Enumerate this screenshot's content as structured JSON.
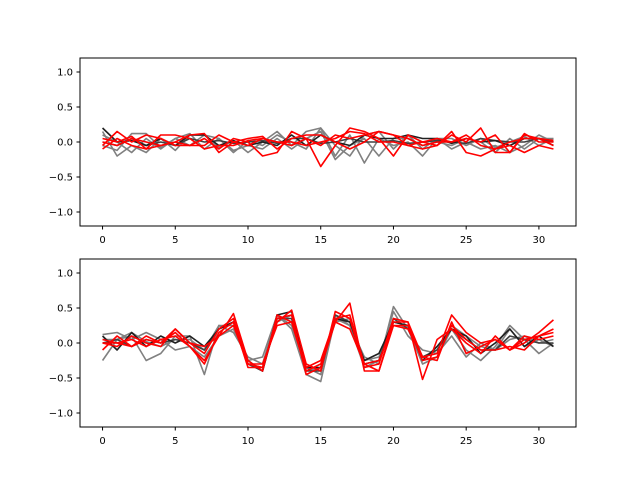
{
  "chart_data": [
    {
      "type": "line",
      "title": "",
      "xlabel": "",
      "ylabel": "",
      "xlim": [
        -1.55,
        32.55
      ],
      "ylim": [
        -1.2,
        1.2
      ],
      "xticks": [
        0,
        5,
        10,
        15,
        20,
        25,
        30
      ],
      "yticks": [
        -1.0,
        -0.5,
        0.0,
        0.5,
        1.0
      ],
      "xtick_labels": [
        "0",
        "5",
        "10",
        "15",
        "20",
        "25",
        "30"
      ],
      "ytick_labels": [
        "−1.0",
        "−0.5",
        "0.0",
        "0.5",
        "1.0"
      ],
      "grid": false,
      "x": [
        0,
        1,
        2,
        3,
        4,
        5,
        6,
        7,
        8,
        9,
        10,
        11,
        12,
        13,
        14,
        15,
        16,
        17,
        18,
        19,
        20,
        21,
        22,
        23,
        24,
        25,
        26,
        27,
        28,
        29,
        30,
        31
      ],
      "series": [
        {
          "color": "#808080",
          "values": [
            0.15,
            -0.2,
            -0.05,
            -0.15,
            0.05,
            -0.12,
            0.1,
            0.1,
            -0.08,
            0.02,
            -0.15,
            0.0,
            0.15,
            -0.05,
            0.15,
            0.2,
            -0.2,
            0.1,
            -0.3,
            0.05,
            -0.05,
            0.0,
            -0.2,
            0.05,
            -0.1,
            0.0,
            -0.1,
            -0.05,
            -0.15,
            -0.05,
            0.1,
            0.0
          ]
        },
        {
          "color": "#808080",
          "values": [
            -0.05,
            -0.12,
            0.12,
            0.12,
            -0.08,
            0.05,
            -0.05,
            0.1,
            0.05,
            -0.12,
            -0.05,
            -0.1,
            0.05,
            -0.1,
            0.05,
            0.15,
            -0.25,
            -0.05,
            0.05,
            -0.2,
            0.05,
            0.05,
            -0.05,
            0.0,
            -0.05,
            0.05,
            0.0,
            -0.15,
            0.05,
            -0.1,
            0.05,
            0.05
          ]
        },
        {
          "color": "#808080",
          "values": [
            0.1,
            0.0,
            -0.15,
            0.05,
            -0.1,
            0.05,
            0.12,
            -0.1,
            0.05,
            -0.15,
            0.02,
            -0.05,
            0.1,
            0.0,
            -0.1,
            0.2,
            -0.05,
            -0.2,
            0.1,
            0.15,
            -0.1,
            0.1,
            -0.1,
            0.05,
            0.05,
            -0.05,
            0.05,
            -0.08,
            0.0,
            0.08,
            -0.05,
            0.05
          ]
        },
        {
          "color": "#404040",
          "values": [
            0.0,
            -0.05,
            0.05,
            -0.05,
            0.0,
            -0.05,
            0.05,
            0.0,
            0.02,
            -0.02,
            0.0,
            0.02,
            -0.02,
            0.05,
            0.05,
            -0.02,
            0.0,
            0.05,
            0.0,
            0.0,
            0.02,
            -0.02,
            0.0,
            0.02,
            0.0,
            -0.02,
            0.05,
            0.02,
            0.0,
            0.0,
            0.05,
            0.0
          ]
        },
        {
          "color": "#202020",
          "values": [
            0.2,
            0.0,
            0.02,
            -0.05,
            0.05,
            -0.05,
            0.1,
            0.1,
            -0.05,
            0.02,
            -0.05,
            0.0,
            -0.05,
            0.1,
            -0.05,
            0.1,
            0.0,
            -0.05,
            0.1,
            0.05,
            0.05,
            0.1,
            0.05,
            0.05,
            -0.02,
            0.05,
            0.0,
            0.02,
            -0.05,
            0.05,
            0.05,
            -0.05
          ]
        },
        {
          "color": "#ff0000",
          "values": [
            0.0,
            -0.05,
            0.05,
            0.0,
            -0.05,
            0.0,
            -0.05,
            -0.05,
            0.1,
            0.0,
            -0.05,
            0.05,
            0.0,
            -0.05,
            0.05,
            -0.05,
            0.1,
            0.05,
            0.1,
            0.15,
            0.1,
            0.05,
            -0.05,
            0.0,
            0.0,
            0.05,
            0.0,
            0.1,
            -0.15,
            0.1,
            0.05,
            -0.05
          ]
        },
        {
          "color": "#ff0000",
          "values": [
            -0.05,
            0.15,
            0.0,
            0.1,
            0.05,
            -0.05,
            -0.05,
            0.05,
            -0.1,
            0.05,
            0.0,
            -0.2,
            -0.15,
            0.15,
            0.05,
            -0.35,
            -0.05,
            0.2,
            0.15,
            0.05,
            -0.2,
            0.1,
            0.0,
            -0.05,
            0.15,
            -0.15,
            -0.2,
            -0.1,
            -0.05,
            -0.15,
            -0.05,
            -0.1
          ]
        },
        {
          "color": "#ff0000",
          "values": [
            -0.1,
            0.05,
            -0.05,
            -0.1,
            0.1,
            0.1,
            0.05,
            -0.1,
            -0.05,
            -0.05,
            0.02,
            0.05,
            0.0,
            0.0,
            -0.05,
            0.0,
            0.05,
            0.15,
            0.12,
            0.0,
            0.0,
            -0.05,
            -0.1,
            -0.05,
            0.1,
            0.0,
            0.2,
            -0.15,
            -0.15,
            0.12,
            0.0,
            0.0
          ]
        },
        {
          "color": "#ff0000",
          "values": [
            0.05,
            0.0,
            0.08,
            -0.1,
            -0.05,
            0.0,
            0.1,
            0.12,
            -0.15,
            0.0,
            0.05,
            0.08,
            -0.1,
            0.05,
            0.1,
            0.1,
            0.0,
            -0.1,
            0.0,
            0.15,
            0.1,
            -0.05,
            0.0,
            0.05,
            0.0,
            0.1,
            -0.05,
            -0.1,
            0.0,
            0.05,
            0.05,
            0.02
          ]
        }
      ]
    },
    {
      "type": "line",
      "title": "",
      "xlabel": "",
      "ylabel": "",
      "xlim": [
        -1.55,
        32.55
      ],
      "ylim": [
        -1.2,
        1.2
      ],
      "xticks": [
        0,
        5,
        10,
        15,
        20,
        25,
        30
      ],
      "yticks": [
        -1.0,
        -0.5,
        0.0,
        0.5,
        1.0
      ],
      "xtick_labels": [
        "0",
        "5",
        "10",
        "15",
        "20",
        "25",
        "30"
      ],
      "ytick_labels": [
        "−1.0",
        "−0.5",
        "0.0",
        "0.5",
        "1.0"
      ],
      "grid": false,
      "x": [
        0,
        1,
        2,
        3,
        4,
        5,
        6,
        7,
        8,
        9,
        10,
        11,
        12,
        13,
        14,
        15,
        16,
        17,
        18,
        19,
        20,
        21,
        22,
        23,
        24,
        25,
        26,
        27,
        28,
        29,
        30,
        31
      ],
      "series": [
        {
          "color": "#808080",
          "values": [
            -0.25,
            0.05,
            0.1,
            -0.25,
            -0.15,
            0.1,
            0.1,
            -0.45,
            0.25,
            0.15,
            -0.2,
            -0.3,
            0.4,
            0.2,
            -0.45,
            -0.55,
            0.35,
            0.25,
            -0.2,
            -0.3,
            0.52,
            0.2,
            -0.3,
            -0.2,
            0.2,
            -0.1,
            -0.25,
            -0.05,
            0.25,
            0.05,
            -0.15,
            0.0
          ]
        },
        {
          "color": "#808080",
          "values": [
            0.12,
            0.15,
            0.05,
            0.15,
            0.05,
            -0.1,
            -0.05,
            -0.2,
            0.1,
            0.2,
            -0.25,
            -0.2,
            0.4,
            0.25,
            -0.35,
            -0.45,
            0.4,
            0.25,
            -0.35,
            -0.25,
            0.45,
            0.1,
            -0.1,
            -0.15,
            0.1,
            -0.2,
            0.0,
            -0.1,
            0.2,
            -0.05,
            0.05,
            -0.05
          ]
        },
        {
          "color": "#808080",
          "values": [
            0.05,
            0.05,
            0.15,
            0.02,
            -0.05,
            0.05,
            0.05,
            -0.1,
            0.25,
            0.25,
            -0.3,
            -0.35,
            0.3,
            0.4,
            -0.4,
            -0.35,
            0.3,
            0.35,
            -0.25,
            -0.2,
            0.3,
            0.25,
            -0.2,
            -0.1,
            0.25,
            0.1,
            -0.05,
            -0.1,
            0.05,
            0.1,
            0.0,
            0.05
          ]
        },
        {
          "color": "#404040",
          "values": [
            0.0,
            0.05,
            -0.05,
            0.05,
            0.0,
            0.05,
            0.0,
            -0.1,
            0.2,
            0.3,
            -0.3,
            -0.4,
            0.35,
            0.35,
            -0.4,
            -0.4,
            0.4,
            0.3,
            -0.3,
            -0.25,
            0.35,
            0.2,
            -0.2,
            -0.1,
            0.2,
            0.05,
            -0.1,
            -0.1,
            0.1,
            0.05,
            0.0,
            0.0
          ]
        },
        {
          "color": "#202020",
          "values": [
            0.1,
            -0.1,
            0.15,
            -0.05,
            0.1,
            0.0,
            0.1,
            -0.05,
            0.2,
            0.3,
            -0.25,
            -0.4,
            0.4,
            0.45,
            -0.35,
            -0.35,
            0.35,
            0.3,
            -0.25,
            -0.15,
            0.3,
            0.25,
            -0.25,
            -0.05,
            0.2,
            0.1,
            -0.15,
            0.0,
            0.2,
            -0.05,
            0.1,
            -0.05
          ]
        },
        {
          "color": "#ff0000",
          "values": [
            0.05,
            0.0,
            -0.05,
            0.05,
            0.0,
            0.2,
            0.0,
            -0.05,
            0.1,
            0.42,
            -0.25,
            -0.4,
            0.4,
            0.3,
            -0.4,
            -0.3,
            0.3,
            0.2,
            -0.3,
            -0.4,
            0.25,
            0.2,
            -0.2,
            -0.25,
            0.3,
            -0.15,
            -0.05,
            0.05,
            -0.1,
            0.1,
            0.05,
            0.1
          ]
        },
        {
          "color": "#ff0000",
          "values": [
            -0.1,
            0.1,
            -0.05,
            0.1,
            0.0,
            0.15,
            -0.05,
            -0.3,
            0.15,
            0.3,
            -0.35,
            -0.35,
            0.3,
            0.47,
            -0.3,
            -0.4,
            0.45,
            0.35,
            -0.35,
            -0.3,
            0.35,
            0.3,
            -0.52,
            0.05,
            0.2,
            0.0,
            -0.15,
            0.1,
            -0.1,
            0.0,
            0.15,
            0.33
          ]
        },
        {
          "color": "#ff0000",
          "values": [
            0.0,
            -0.05,
            0.1,
            0.0,
            -0.05,
            0.2,
            0.0,
            -0.15,
            0.2,
            0.35,
            -0.3,
            -0.35,
            0.35,
            0.4,
            -0.45,
            -0.35,
            0.3,
            0.57,
            -0.4,
            -0.4,
            0.3,
            0.3,
            -0.2,
            -0.15,
            0.4,
            0.15,
            0.0,
            0.05,
            -0.1,
            0.05,
            0.1,
            0.2
          ]
        },
        {
          "color": "#ff0000",
          "values": [
            0.0,
            0.0,
            0.05,
            -0.05,
            0.05,
            0.1,
            -0.05,
            -0.25,
            0.1,
            0.25,
            -0.3,
            -0.3,
            0.25,
            0.3,
            -0.35,
            -0.25,
            0.35,
            0.4,
            -0.3,
            -0.25,
            0.25,
            0.25,
            -0.25,
            -0.2,
            0.25,
            0.05,
            -0.1,
            -0.1,
            -0.05,
            -0.1,
            0.1,
            0.15
          ]
        }
      ]
    }
  ]
}
